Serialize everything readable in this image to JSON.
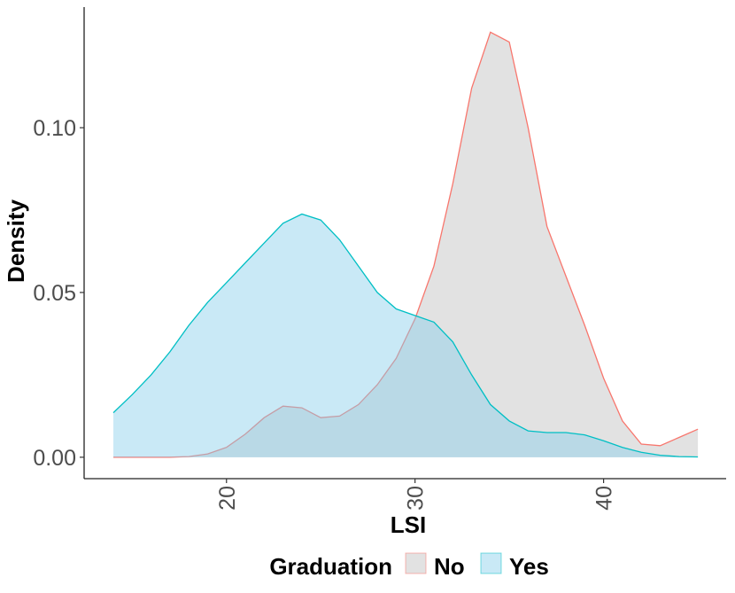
{
  "chart_data": {
    "type": "density",
    "x_label": "LSI",
    "y_label": "Density",
    "legend_title": "Graduation",
    "x": [
      14,
      15,
      16,
      17,
      18,
      19,
      20,
      21,
      22,
      23,
      24,
      25,
      26,
      27,
      28,
      29,
      30,
      31,
      32,
      33,
      34,
      35,
      36,
      37,
      38,
      39,
      40,
      41,
      42,
      43,
      44,
      45
    ],
    "series": [
      {
        "name": "No",
        "color": "#f8766d",
        "fill": "#bebebe",
        "values": [
          0,
          0,
          0,
          0,
          0.0002,
          0.001,
          0.003,
          0.007,
          0.012,
          0.0155,
          0.015,
          0.012,
          0.0125,
          0.016,
          0.022,
          0.03,
          0.042,
          0.058,
          0.083,
          0.112,
          0.129,
          0.126,
          0.1,
          0.07,
          0.055,
          0.04,
          0.024,
          0.011,
          0.004,
          0.0035,
          0.006,
          0.0085
        ]
      },
      {
        "name": "Yes",
        "color": "#00bfc4",
        "fill": "#87ceeb",
        "values": [
          0.0135,
          0.019,
          0.025,
          0.032,
          0.04,
          0.047,
          0.053,
          0.059,
          0.065,
          0.071,
          0.0738,
          0.072,
          0.066,
          0.058,
          0.05,
          0.045,
          0.043,
          0.041,
          0.035,
          0.025,
          0.016,
          0.011,
          0.008,
          0.0075,
          0.0075,
          0.0068,
          0.005,
          0.003,
          0.0015,
          0.0006,
          0.0002,
          0.0001
        ]
      }
    ],
    "xlim": [
      12.45,
      46.5
    ],
    "ylim": [
      -0.0065,
      0.1366
    ],
    "xticks": [
      20,
      30,
      40
    ],
    "yticks": [
      {
        "value": 0,
        "label": "0.00"
      },
      {
        "value": 0.05,
        "label": "0.05"
      },
      {
        "value": 0.1,
        "label": "0.10"
      }
    ],
    "fill_opacity": 0.45
  }
}
